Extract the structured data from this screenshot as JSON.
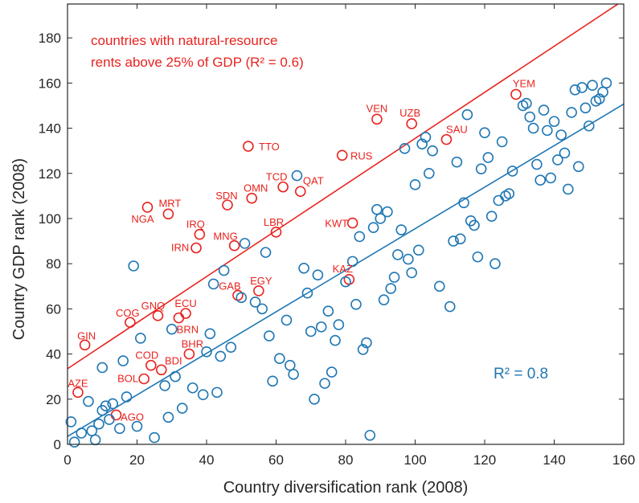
{
  "chart_data": {
    "type": "scatter",
    "xlabel": "Country diversification rank (2008)",
    "ylabel": "Country GDP rank (2008)",
    "xlim": [
      0,
      160
    ],
    "ylim": [
      0,
      195
    ],
    "xticks": [
      0,
      20,
      40,
      60,
      80,
      100,
      120,
      140,
      160
    ],
    "yticks": [
      0,
      20,
      40,
      60,
      80,
      100,
      120,
      140,
      160,
      180
    ],
    "grid": false,
    "colors": {
      "resource": "#e8231f",
      "other": "#1f77b4",
      "axis": "#262626"
    },
    "annotations": {
      "resource_line1": "countries with natural-resource",
      "resource_line2": "rents above 25% of GDP (R² = 0.6)",
      "other_r2": "R² = 0.8"
    },
    "series": [
      {
        "color": "#e8231f",
        "fit": {
          "slope": 1.02,
          "intercept": 33.5
        },
        "points": [
          {
            "x": 3,
            "y": 23,
            "label": "AZE"
          },
          {
            "x": 5,
            "y": 44,
            "label": "GIN"
          },
          {
            "x": 14,
            "y": 13,
            "label": "AGO"
          },
          {
            "x": 18,
            "y": 54,
            "label": "COG"
          },
          {
            "x": 22,
            "y": 29,
            "label": "BOL"
          },
          {
            "x": 23,
            "y": 105,
            "label": "NGA"
          },
          {
            "x": 24,
            "y": 35,
            "label": "COD"
          },
          {
            "x": 26,
            "y": 57,
            "label": "GNQ"
          },
          {
            "x": 27,
            "y": 33,
            "label": "BDI"
          },
          {
            "x": 29,
            "y": 102,
            "label": "MRT"
          },
          {
            "x": 32,
            "y": 56,
            "label": "BRN"
          },
          {
            "x": 34,
            "y": 58,
            "label": "ECU"
          },
          {
            "x": 35,
            "y": 40,
            "label": "BHR"
          },
          {
            "x": 37,
            "y": 87,
            "label": "IRN"
          },
          {
            "x": 38,
            "y": 93,
            "label": "IRQ"
          },
          {
            "x": 46,
            "y": 106,
            "label": "SDN"
          },
          {
            "x": 48,
            "y": 88,
            "label": "MNG"
          },
          {
            "x": 49,
            "y": 66,
            "label": "GAB"
          },
          {
            "x": 52,
            "y": 132,
            "label": "TTO"
          },
          {
            "x": 53,
            "y": 109,
            "label": "OMN"
          },
          {
            "x": 55,
            "y": 68,
            "label": "EGY"
          },
          {
            "x": 60,
            "y": 94,
            "label": "LBR"
          },
          {
            "x": 62,
            "y": 114,
            "label": "TCD"
          },
          {
            "x": 67,
            "y": 112,
            "label": "QAT"
          },
          {
            "x": 79,
            "y": 128,
            "label": "RUS"
          },
          {
            "x": 81,
            "y": 73,
            "label": "KAZ"
          },
          {
            "x": 82,
            "y": 98,
            "label": "KWT"
          },
          {
            "x": 89,
            "y": 144,
            "label": "VEN"
          },
          {
            "x": 99,
            "y": 142,
            "label": "UZB"
          },
          {
            "x": 109,
            "y": 135,
            "label": "SAU"
          },
          {
            "x": 129,
            "y": 155,
            "label": "YEM"
          }
        ]
      },
      {
        "color": "#1f77b4",
        "fit": {
          "slope": 0.92,
          "intercept": 3.5
        },
        "points": [
          {
            "x": 1,
            "y": 10
          },
          {
            "x": 2,
            "y": 1
          },
          {
            "x": 4,
            "y": 5
          },
          {
            "x": 6,
            "y": 19
          },
          {
            "x": 7,
            "y": 6
          },
          {
            "x": 8,
            "y": 2
          },
          {
            "x": 9,
            "y": 9
          },
          {
            "x": 10,
            "y": 15
          },
          {
            "x": 10,
            "y": 34
          },
          {
            "x": 11,
            "y": 17
          },
          {
            "x": 12,
            "y": 11
          },
          {
            "x": 13,
            "y": 18
          },
          {
            "x": 15,
            "y": 7
          },
          {
            "x": 16,
            "y": 37
          },
          {
            "x": 17,
            "y": 21
          },
          {
            "x": 19,
            "y": 79
          },
          {
            "x": 20,
            "y": 8
          },
          {
            "x": 21,
            "y": 47
          },
          {
            "x": 25,
            "y": 3
          },
          {
            "x": 28,
            "y": 26
          },
          {
            "x": 29,
            "y": 12
          },
          {
            "x": 30,
            "y": 51
          },
          {
            "x": 31,
            "y": 30
          },
          {
            "x": 33,
            "y": 16
          },
          {
            "x": 36,
            "y": 25
          },
          {
            "x": 39,
            "y": 22
          },
          {
            "x": 40,
            "y": 41
          },
          {
            "x": 41,
            "y": 49
          },
          {
            "x": 42,
            "y": 71
          },
          {
            "x": 43,
            "y": 23
          },
          {
            "x": 44,
            "y": 39
          },
          {
            "x": 45,
            "y": 77
          },
          {
            "x": 47,
            "y": 43
          },
          {
            "x": 50,
            "y": 65
          },
          {
            "x": 51,
            "y": 89
          },
          {
            "x": 54,
            "y": 63
          },
          {
            "x": 56,
            "y": 60
          },
          {
            "x": 57,
            "y": 85
          },
          {
            "x": 58,
            "y": 48
          },
          {
            "x": 59,
            "y": 28
          },
          {
            "x": 61,
            "y": 38
          },
          {
            "x": 63,
            "y": 55
          },
          {
            "x": 64,
            "y": 35
          },
          {
            "x": 65,
            "y": 31
          },
          {
            "x": 66,
            "y": 119
          },
          {
            "x": 68,
            "y": 78
          },
          {
            "x": 69,
            "y": 67
          },
          {
            "x": 70,
            "y": 50
          },
          {
            "x": 71,
            "y": 20
          },
          {
            "x": 72,
            "y": 75
          },
          {
            "x": 73,
            "y": 52
          },
          {
            "x": 74,
            "y": 27
          },
          {
            "x": 75,
            "y": 59
          },
          {
            "x": 76,
            "y": 32
          },
          {
            "x": 77,
            "y": 46
          },
          {
            "x": 78,
            "y": 53
          },
          {
            "x": 80,
            "y": 72
          },
          {
            "x": 82,
            "y": 81
          },
          {
            "x": 83,
            "y": 62
          },
          {
            "x": 84,
            "y": 92
          },
          {
            "x": 85,
            "y": 42
          },
          {
            "x": 86,
            "y": 45
          },
          {
            "x": 87,
            "y": 4
          },
          {
            "x": 88,
            "y": 96
          },
          {
            "x": 89,
            "y": 104
          },
          {
            "x": 90,
            "y": 100
          },
          {
            "x": 91,
            "y": 64
          },
          {
            "x": 92,
            "y": 103
          },
          {
            "x": 93,
            "y": 69
          },
          {
            "x": 94,
            "y": 74
          },
          {
            "x": 95,
            "y": 84
          },
          {
            "x": 96,
            "y": 95
          },
          {
            "x": 97,
            "y": 131
          },
          {
            "x": 98,
            "y": 82
          },
          {
            "x": 99,
            "y": 76
          },
          {
            "x": 100,
            "y": 115
          },
          {
            "x": 101,
            "y": 86
          },
          {
            "x": 102,
            "y": 133
          },
          {
            "x": 103,
            "y": 136
          },
          {
            "x": 104,
            "y": 120
          },
          {
            "x": 105,
            "y": 130
          },
          {
            "x": 107,
            "y": 70
          },
          {
            "x": 110,
            "y": 61
          },
          {
            "x": 111,
            "y": 90
          },
          {
            "x": 112,
            "y": 125
          },
          {
            "x": 113,
            "y": 91
          },
          {
            "x": 114,
            "y": 107
          },
          {
            "x": 115,
            "y": 146
          },
          {
            "x": 116,
            "y": 99
          },
          {
            "x": 117,
            "y": 97
          },
          {
            "x": 118,
            "y": 83
          },
          {
            "x": 119,
            "y": 122
          },
          {
            "x": 120,
            "y": 138
          },
          {
            "x": 121,
            "y": 127
          },
          {
            "x": 122,
            "y": 101
          },
          {
            "x": 123,
            "y": 80
          },
          {
            "x": 124,
            "y": 108
          },
          {
            "x": 125,
            "y": 134
          },
          {
            "x": 126,
            "y": 110
          },
          {
            "x": 127,
            "y": 111
          },
          {
            "x": 128,
            "y": 121
          },
          {
            "x": 131,
            "y": 150
          },
          {
            "x": 132,
            "y": 151
          },
          {
            "x": 133,
            "y": 145
          },
          {
            "x": 134,
            "y": 140
          },
          {
            "x": 135,
            "y": 124
          },
          {
            "x": 136,
            "y": 117
          },
          {
            "x": 137,
            "y": 148
          },
          {
            "x": 138,
            "y": 139
          },
          {
            "x": 139,
            "y": 118
          },
          {
            "x": 140,
            "y": 143
          },
          {
            "x": 141,
            "y": 126
          },
          {
            "x": 142,
            "y": 137
          },
          {
            "x": 143,
            "y": 129
          },
          {
            "x": 144,
            "y": 113
          },
          {
            "x": 145,
            "y": 147
          },
          {
            "x": 146,
            "y": 157
          },
          {
            "x": 147,
            "y": 123
          },
          {
            "x": 148,
            "y": 158
          },
          {
            "x": 149,
            "y": 149
          },
          {
            "x": 150,
            "y": 141
          },
          {
            "x": 151,
            "y": 159
          },
          {
            "x": 152,
            "y": 152
          },
          {
            "x": 153,
            "y": 153
          },
          {
            "x": 154,
            "y": 156
          },
          {
            "x": 155,
            "y": 160
          }
        ]
      }
    ]
  }
}
